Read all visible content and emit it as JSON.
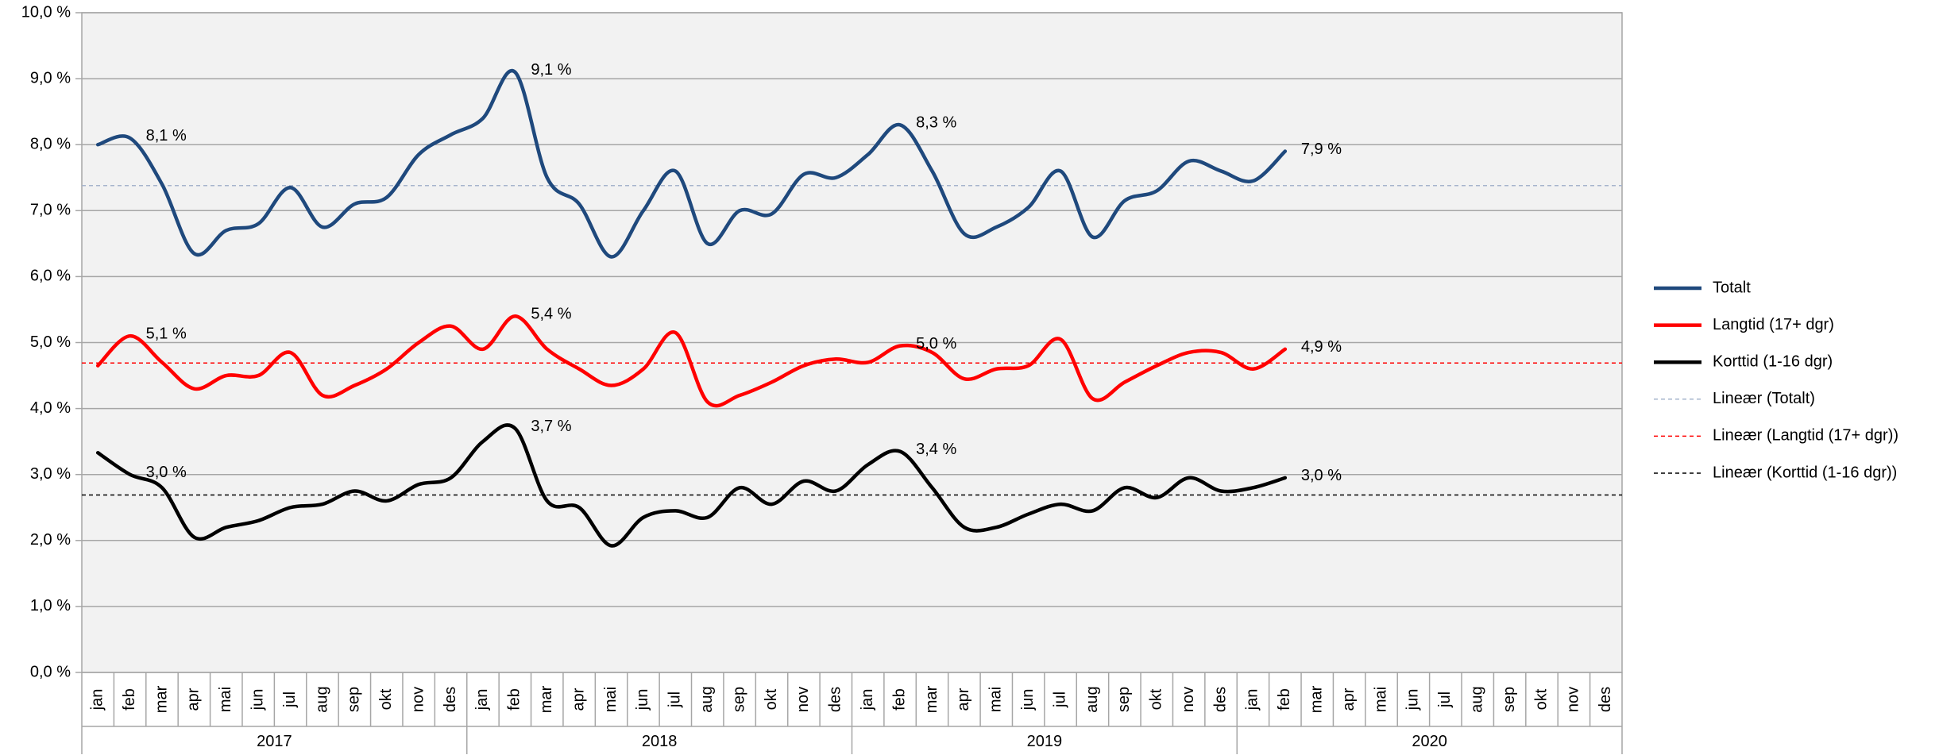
{
  "chart_data": {
    "type": "line",
    "categories": [
      "jan",
      "feb",
      "mar",
      "apr",
      "mai",
      "jun",
      "jul",
      "aug",
      "sep",
      "okt",
      "nov",
      "des",
      "jan",
      "feb",
      "mar",
      "apr",
      "mai",
      "jun",
      "jul",
      "aug",
      "sep",
      "okt",
      "nov",
      "des",
      "jan",
      "feb",
      "mar",
      "apr",
      "mai",
      "jun",
      "jul",
      "aug",
      "sep",
      "okt",
      "nov",
      "des",
      "jan",
      "feb",
      "mar",
      "apr",
      "mai",
      "jun",
      "jul",
      "aug",
      "sep",
      "okt",
      "nov",
      "des"
    ],
    "years": [
      "2017",
      "2018",
      "2019",
      "2020"
    ],
    "ylim": [
      0,
      10
    ],
    "yticks": [
      {
        "value": 0,
        "label": "0,0 %"
      },
      {
        "value": 1,
        "label": "1,0 %"
      },
      {
        "value": 2,
        "label": "2,0 %"
      },
      {
        "value": 3,
        "label": "3,0 %"
      },
      {
        "value": 4,
        "label": "4,0 %"
      },
      {
        "value": 5,
        "label": "5,0 %"
      },
      {
        "value": 6,
        "label": "6,0 %"
      },
      {
        "value": 7,
        "label": "7,0 %"
      },
      {
        "value": 8,
        "label": "8,0 %"
      },
      {
        "value": 9,
        "label": "9,0 %"
      },
      {
        "value": 10,
        "label": "10,0 %"
      }
    ],
    "grid": true,
    "smooth": true,
    "legend": "right",
    "series": [
      {
        "name": "Totalt",
        "color": "#1f497d",
        "values": [
          8.0,
          8.1,
          7.4,
          6.35,
          6.7,
          6.8,
          7.35,
          6.75,
          7.1,
          7.2,
          7.85,
          8.15,
          8.4,
          9.1,
          7.5,
          7.1,
          6.3,
          7.0,
          7.6,
          6.5,
          7.0,
          6.95,
          7.55,
          7.5,
          7.85,
          8.3,
          7.6,
          6.65,
          6.75,
          7.05,
          7.6,
          6.6,
          7.15,
          7.3,
          7.75,
          7.6,
          7.45,
          7.9,
          null,
          null,
          null,
          null,
          null,
          null,
          null,
          null,
          null,
          null
        ],
        "value_labels": [
          null,
          "8,1 %",
          null,
          null,
          null,
          null,
          null,
          null,
          null,
          null,
          null,
          null,
          null,
          "9,1 %",
          null,
          null,
          null,
          null,
          null,
          null,
          null,
          null,
          null,
          null,
          null,
          "8,3 %",
          null,
          null,
          null,
          null,
          null,
          null,
          null,
          null,
          null,
          null,
          null,
          "7,9 %",
          null,
          null,
          null,
          null,
          null,
          null,
          null,
          null,
          null,
          null
        ]
      },
      {
        "name": "Langtid (17+ dgr)",
        "color": "#ff0000",
        "values": [
          4.65,
          5.1,
          4.7,
          4.3,
          4.5,
          4.5,
          4.85,
          4.2,
          4.35,
          4.6,
          5.0,
          5.25,
          4.9,
          5.4,
          4.9,
          4.6,
          4.35,
          4.6,
          5.15,
          4.1,
          4.2,
          4.4,
          4.65,
          4.75,
          4.7,
          4.95,
          4.85,
          4.45,
          4.6,
          4.65,
          5.05,
          4.15,
          4.4,
          4.65,
          4.85,
          4.85,
          4.6,
          4.9,
          null,
          null,
          null,
          null,
          null,
          null,
          null,
          null,
          null,
          null
        ],
        "value_labels": [
          null,
          "5,1 %",
          null,
          null,
          null,
          null,
          null,
          null,
          null,
          null,
          null,
          null,
          null,
          "5,4 %",
          null,
          null,
          null,
          null,
          null,
          null,
          null,
          null,
          null,
          null,
          null,
          "5,0 %",
          null,
          null,
          null,
          null,
          null,
          null,
          null,
          null,
          null,
          null,
          null,
          "4,9 %",
          null,
          null,
          null,
          null,
          null,
          null,
          null,
          null,
          null,
          null
        ]
      },
      {
        "name": "Korttid (1-16 dgr)",
        "color": "#000000",
        "values": [
          3.33,
          3.0,
          2.8,
          2.05,
          2.2,
          2.3,
          2.5,
          2.55,
          2.75,
          2.6,
          2.85,
          2.95,
          3.5,
          3.7,
          2.6,
          2.5,
          1.92,
          2.35,
          2.45,
          2.35,
          2.8,
          2.55,
          2.9,
          2.75,
          3.15,
          3.35,
          2.8,
          2.2,
          2.2,
          2.4,
          2.55,
          2.45,
          2.8,
          2.65,
          2.95,
          2.75,
          2.8,
          2.95,
          null,
          null,
          null,
          null,
          null,
          null,
          null,
          null,
          null,
          null
        ],
        "value_labels": [
          null,
          "3,0 %",
          null,
          null,
          null,
          null,
          null,
          null,
          null,
          null,
          null,
          null,
          null,
          "3,7 %",
          null,
          null,
          null,
          null,
          null,
          null,
          null,
          null,
          null,
          null,
          null,
          "3,4 %",
          null,
          null,
          null,
          null,
          null,
          null,
          null,
          null,
          null,
          null,
          null,
          "3,0 %",
          null,
          null,
          null,
          null,
          null,
          null,
          null,
          null,
          null,
          null
        ]
      }
    ],
    "trendlines": [
      {
        "name": "Lineær (Totalt)",
        "color": "#a6b4cc",
        "values": [
          7.38,
          7.38
        ]
      },
      {
        "name": "Lineær (Langtid (17+ dgr))",
        "color": "#ff0000",
        "values": [
          4.69,
          4.69
        ]
      },
      {
        "name": "Lineær (Korttid (1-16 dgr))",
        "color": "#000000",
        "values": [
          2.69,
          2.69
        ]
      }
    ]
  }
}
